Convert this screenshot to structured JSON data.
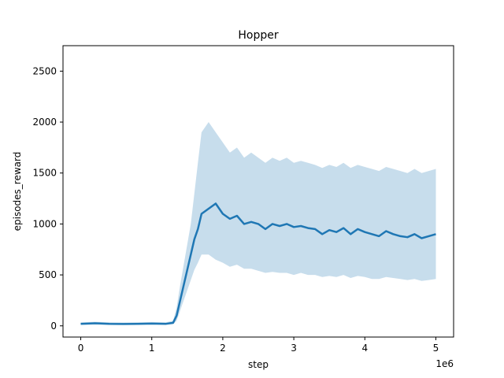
{
  "chart_data": {
    "type": "line",
    "title": "Hopper",
    "xlabel": "step",
    "ylabel": "episodes_reward",
    "x_offset_text": "1e6",
    "xlim": [
      -250000,
      5250000
    ],
    "ylim": [
      -110,
      2750
    ],
    "x_ticks": [
      {
        "value": 0,
        "label": "0"
      },
      {
        "value": 1000000,
        "label": "1"
      },
      {
        "value": 2000000,
        "label": "2"
      },
      {
        "value": 3000000,
        "label": "3"
      },
      {
        "value": 4000000,
        "label": "4"
      },
      {
        "value": 5000000,
        "label": "5"
      }
    ],
    "y_ticks": [
      {
        "value": 0,
        "label": "0"
      },
      {
        "value": 500,
        "label": "500"
      },
      {
        "value": 1000,
        "label": "1000"
      },
      {
        "value": 1500,
        "label": "1500"
      },
      {
        "value": 2000,
        "label": "2000"
      },
      {
        "value": 2500,
        "label": "2500"
      }
    ],
    "grid": false,
    "colors": {
      "line": "#1f77b4",
      "band": "#1f77b4"
    },
    "series": [
      {
        "x": [
          0,
          200000,
          400000,
          600000,
          800000,
          1000000,
          1200000,
          1300000,
          1350000,
          1400000,
          1450000,
          1500000,
          1550000,
          1600000,
          1650000,
          1700000,
          1800000,
          1900000,
          2000000,
          2100000,
          2200000,
          2300000,
          2400000,
          2500000,
          2600000,
          2700000,
          2800000,
          2900000,
          3000000,
          3100000,
          3200000,
          3300000,
          3400000,
          3500000,
          3600000,
          3700000,
          3800000,
          3900000,
          4000000,
          4100000,
          4200000,
          4300000,
          4400000,
          4500000,
          4600000,
          4700000,
          4800000,
          4900000,
          5000000
        ],
        "y": [
          20,
          25,
          20,
          18,
          20,
          22,
          20,
          30,
          100,
          250,
          400,
          550,
          700,
          850,
          950,
          1100,
          1150,
          1200,
          1100,
          1050,
          1080,
          1000,
          1020,
          1000,
          950,
          1000,
          980,
          1000,
          970,
          980,
          960,
          950,
          900,
          940,
          920,
          960,
          900,
          950,
          920,
          900,
          880,
          930,
          900,
          880,
          870,
          900,
          860,
          880,
          900
        ],
        "lower": [
          10,
          12,
          10,
          8,
          10,
          12,
          10,
          15,
          50,
          150,
          250,
          350,
          450,
          550,
          620,
          700,
          700,
          650,
          620,
          580,
          600,
          560,
          560,
          540,
          520,
          530,
          520,
          520,
          500,
          520,
          500,
          500,
          480,
          490,
          480,
          500,
          470,
          490,
          480,
          460,
          460,
          480,
          470,
          460,
          450,
          460,
          440,
          450,
          460
        ],
        "upper": [
          35,
          40,
          35,
          32,
          35,
          38,
          35,
          50,
          180,
          400,
          600,
          800,
          1000,
          1300,
          1600,
          1900,
          2000,
          1900,
          1800,
          1700,
          1750,
          1650,
          1700,
          1650,
          1600,
          1650,
          1620,
          1650,
          1600,
          1620,
          1600,
          1580,
          1550,
          1580,
          1560,
          1600,
          1550,
          1580,
          1560,
          1540,
          1520,
          1560,
          1540,
          1520,
          1500,
          1540,
          1500,
          1520,
          1540
        ]
      }
    ]
  }
}
